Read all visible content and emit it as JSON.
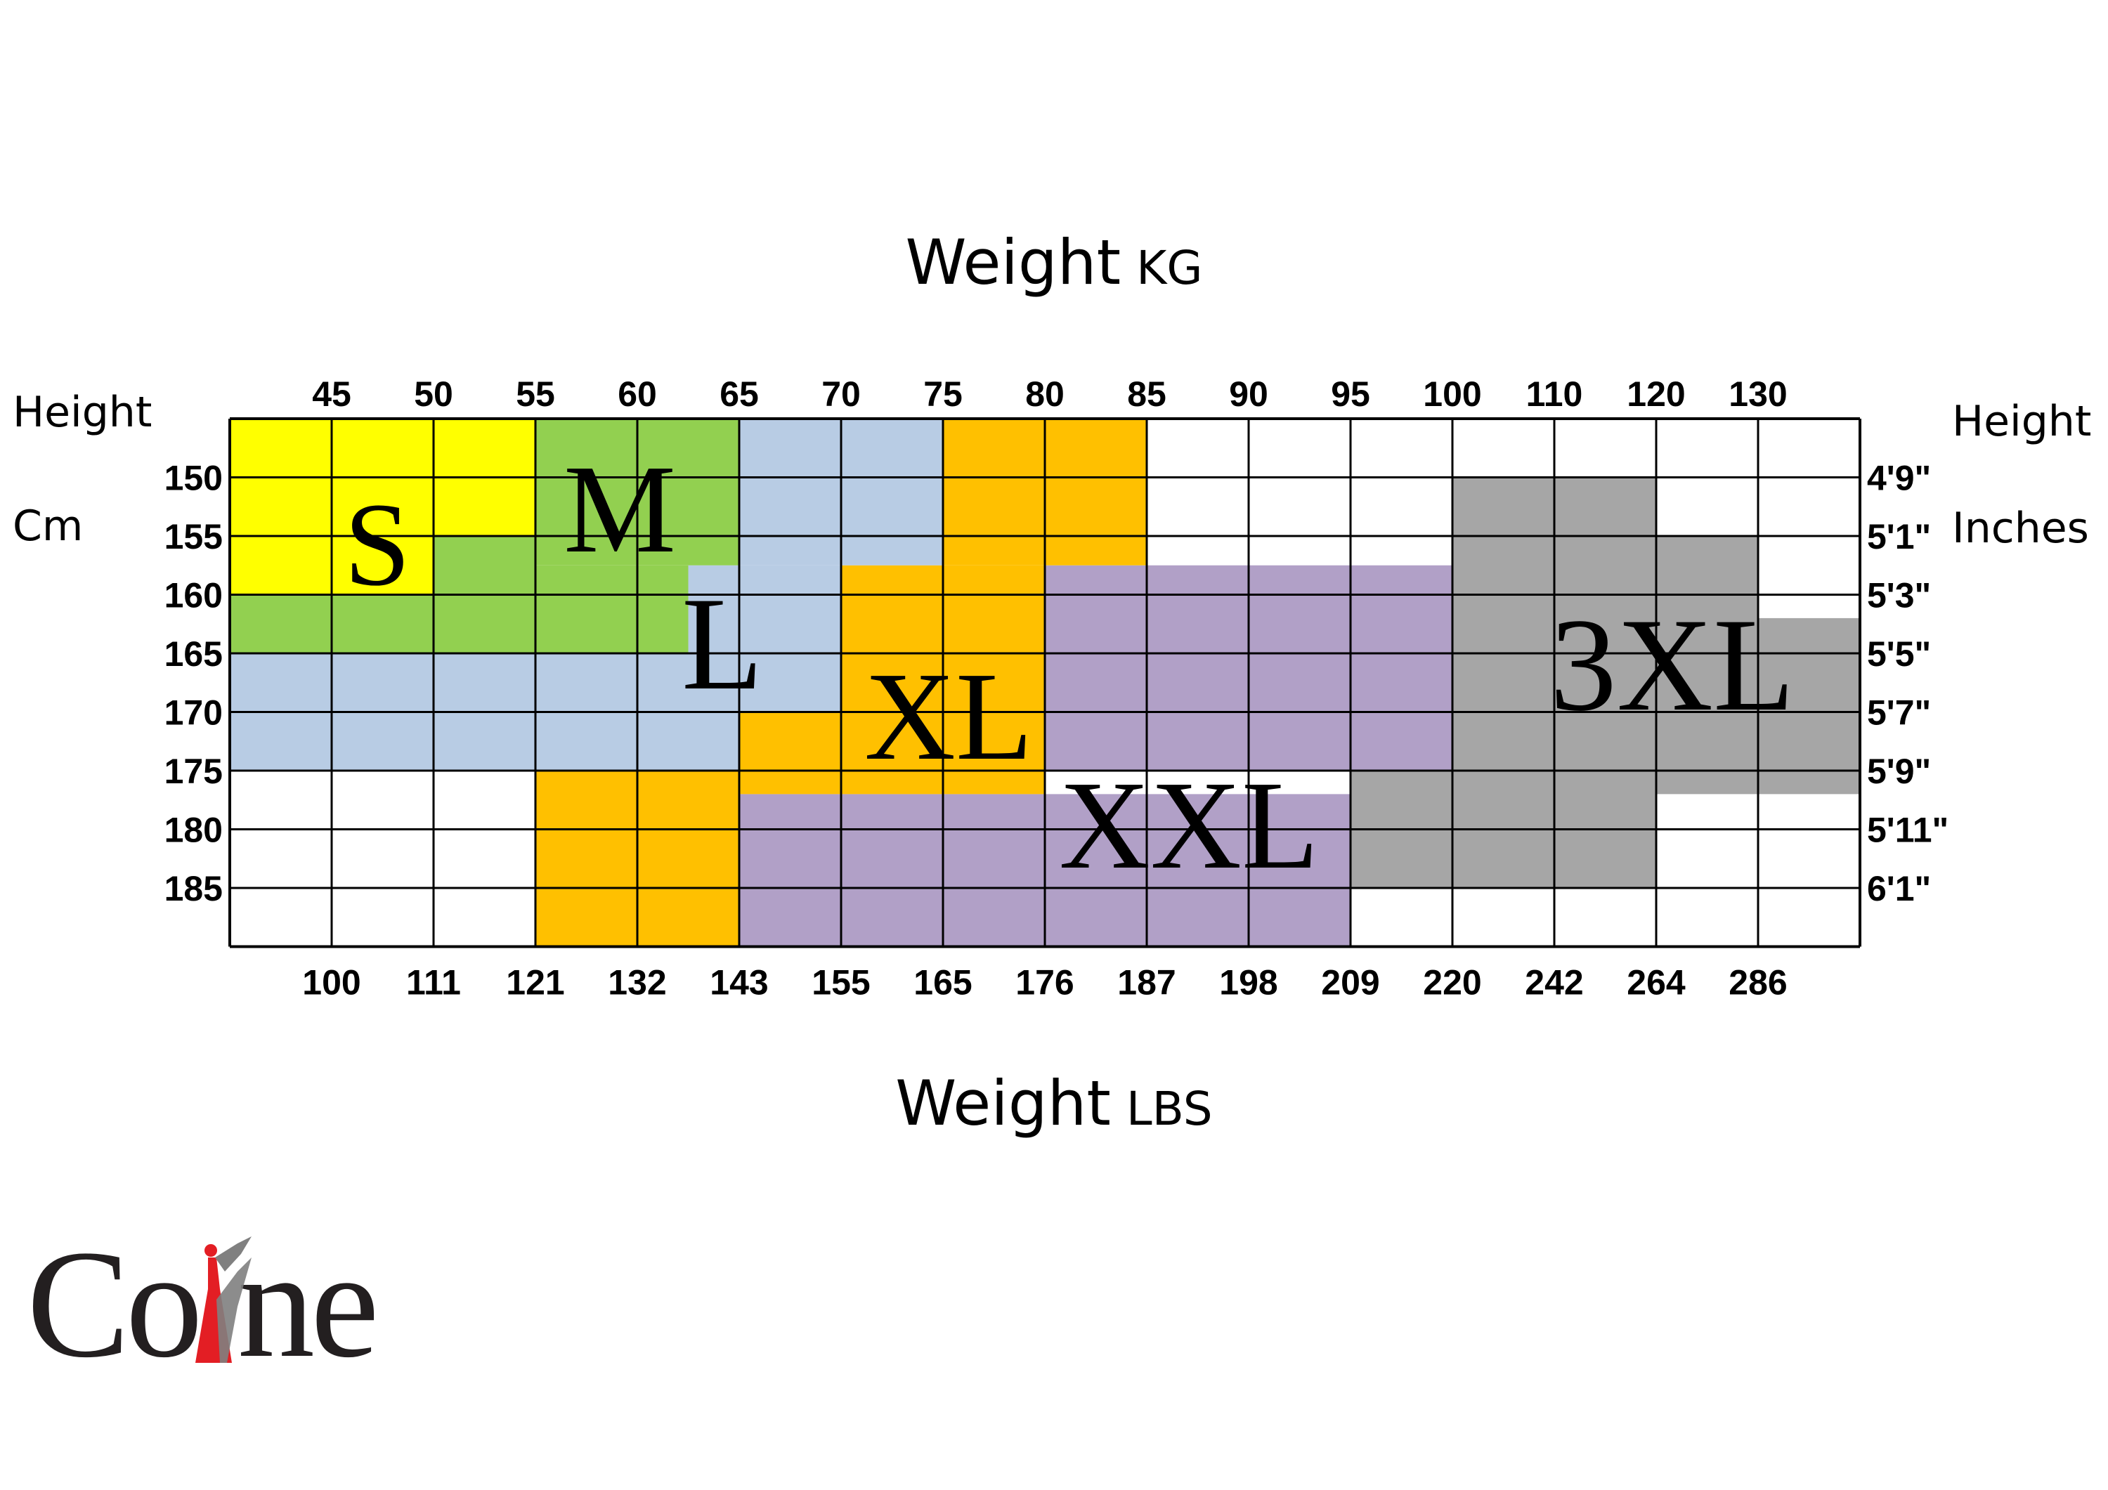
{
  "chart_data": {
    "type": "heatmap",
    "title": "Weight",
    "title_unit": "KG",
    "bottom_title": "Weight",
    "bottom_title_unit": "LBS",
    "left_axis": {
      "title": "Height",
      "unit": "Cm"
    },
    "right_axis": {
      "title": "Height",
      "unit": "Inches"
    },
    "weight_kg_ticks": [
      "45",
      "50",
      "55",
      "60",
      "65",
      "70",
      "75",
      "80",
      "85",
      "90",
      "95",
      "100",
      "110",
      "120",
      "130"
    ],
    "weight_lbs_ticks": [
      "100",
      "111",
      "121",
      "132",
      "143",
      "155",
      "165",
      "176",
      "187",
      "198",
      "209",
      "220",
      "242",
      "264",
      "286"
    ],
    "height_cm_ticks": [
      "150",
      "155",
      "160",
      "165",
      "170",
      "175",
      "180",
      "185"
    ],
    "height_inch_ticks": [
      "4'9\"",
      "5'1\"",
      "5'3\"",
      "5'5\"",
      "5'7\"",
      "5'9\"",
      "5'11\"",
      "6'1\""
    ],
    "grid": true,
    "colors": {
      "S": "#ffff00",
      "M": "#92d050",
      "L": "#b8cce4",
      "XL": "#ffc000",
      "XXL": "#b1a0c7",
      "3XL": "#a6a6a6",
      "empty": "#ffffff",
      "grid": "#000000"
    },
    "sizes": [
      {
        "name": "S",
        "weight_kg": [
          40,
          55
        ],
        "height_cm": [
          145,
          159
        ]
      },
      {
        "name": "M",
        "weight_kg": [
          55,
          65
        ],
        "height_cm": [
          145,
          157
        ],
        "extends_to": {
          "weight_kg": [
            40,
            60
          ],
          "height_cm": [
            159,
            165
          ]
        }
      },
      {
        "name": "L",
        "weight_kg": [
          65,
          75
        ],
        "height_cm": [
          145,
          165
        ],
        "extends_to": {
          "weight_kg": [
            40,
            65
          ],
          "height_cm": [
            165,
            175
          ]
        }
      },
      {
        "name": "XL",
        "weight_kg": [
          75,
          85
        ],
        "height_cm": [
          145,
          157
        ],
        "extends_to": {
          "weight_kg": [
            55,
            75
          ],
          "height_cm": [
            175,
            190
          ]
        }
      },
      {
        "name": "XXL",
        "weight_kg": [
          80,
          100
        ],
        "height_cm": [
          157,
          175
        ],
        "extends_to": {
          "weight_kg": [
            65,
            95
          ],
          "height_cm": [
            175,
            190
          ]
        }
      },
      {
        "name": "3XL",
        "weight_kg": [
          100,
          120
        ],
        "height_cm": [
          150,
          185
        ],
        "extends_to": {
          "weight_kg": [
            120,
            140
          ],
          "height_cm": [
            155,
            177
          ]
        }
      }
    ]
  },
  "brand": {
    "logo_text": "Coline",
    "colors": {
      "text": "#231f20",
      "figure_red": "#e31e24",
      "figure_gray": "#808080"
    }
  }
}
